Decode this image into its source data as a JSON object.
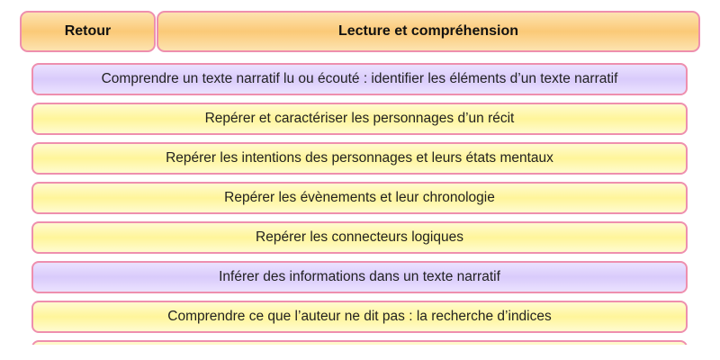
{
  "header": {
    "back_label": "Retour",
    "title": "Lecture et compréhension"
  },
  "colors": {
    "header": "#fbc977",
    "item_yellow": "#fff59a",
    "item_purple": "#d9cbfb",
    "border": "#ee8fae"
  },
  "items": [
    {
      "label": "Comprendre un texte narratif lu ou écouté : identifier les éléments d’un texte narratif",
      "color": "purple"
    },
    {
      "label": "Repérer et caractériser les personnages d’un récit",
      "color": "yellow"
    },
    {
      "label": "Repérer les intentions des personnages et leurs états mentaux",
      "color": "yellow"
    },
    {
      "label": "Repérer les évènements et leur chronologie",
      "color": "yellow"
    },
    {
      "label": "Repérer les connecteurs logiques",
      "color": "yellow"
    },
    {
      "label": "Inférer des informations dans un texte narratif",
      "color": "purple"
    },
    {
      "label": "Comprendre ce que l’auteur ne dit pas : la recherche d’indices",
      "color": "yellow"
    },
    {
      "label": "",
      "color": "yellow"
    }
  ]
}
